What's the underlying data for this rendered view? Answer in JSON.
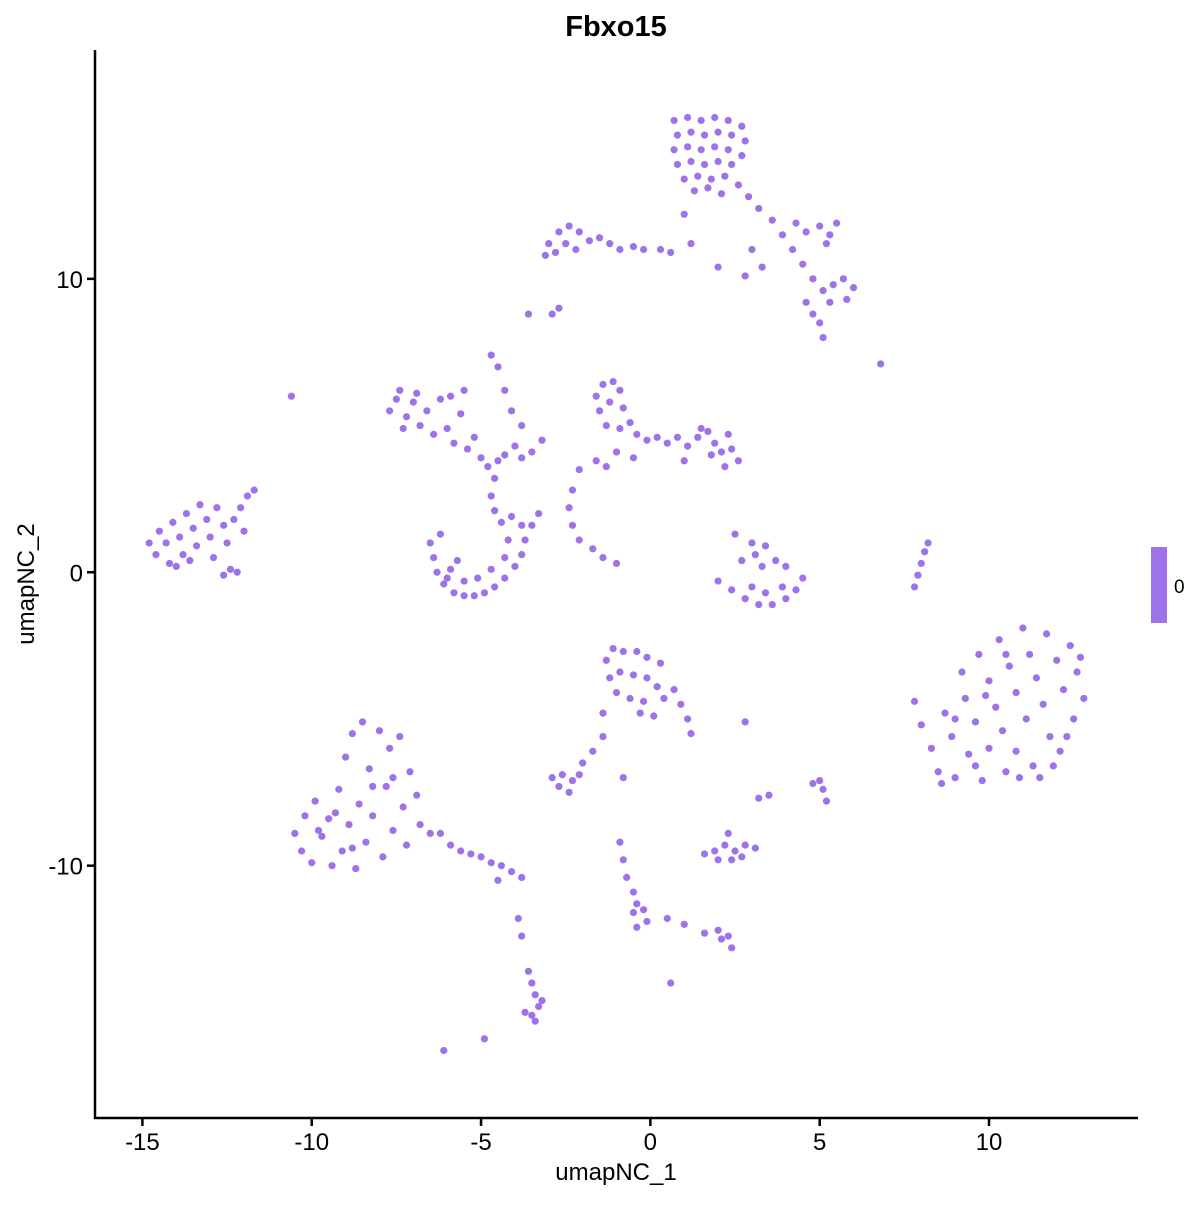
{
  "chart_data": {
    "type": "scatter",
    "title": "Fbxo15",
    "xlabel": "umapNC_1",
    "ylabel": "umapNC_2",
    "xlim": [
      -16.4,
      14.4
    ],
    "ylim": [
      -18.6,
      17.8
    ],
    "xticks": [
      -15,
      -10,
      -5,
      0,
      5,
      10
    ],
    "yticks": [
      -10,
      0,
      10
    ],
    "grid": false,
    "point_color": "#9E72E8",
    "legend": {
      "placement": "right",
      "labels": [
        "0"
      ],
      "color": "#9E72E8"
    },
    "points": [
      [
        0.7,
        15.4
      ],
      [
        1.1,
        15.5
      ],
      [
        1.5,
        15.4
      ],
      [
        1.9,
        15.5
      ],
      [
        2.3,
        15.4
      ],
      [
        2.7,
        15.2
      ],
      [
        0.8,
        14.9
      ],
      [
        1.2,
        15.0
      ],
      [
        1.6,
        14.9
      ],
      [
        2.0,
        15.0
      ],
      [
        2.4,
        14.9
      ],
      [
        2.8,
        14.7
      ],
      [
        0.7,
        14.4
      ],
      [
        1.1,
        14.5
      ],
      [
        1.5,
        14.4
      ],
      [
        1.9,
        14.5
      ],
      [
        2.3,
        14.4
      ],
      [
        2.7,
        14.2
      ],
      [
        0.8,
        13.9
      ],
      [
        1.2,
        14.0
      ],
      [
        1.6,
        13.9
      ],
      [
        2.0,
        14.0
      ],
      [
        2.4,
        13.9
      ],
      [
        1.0,
        13.4
      ],
      [
        1.4,
        13.5
      ],
      [
        1.8,
        13.4
      ],
      [
        2.2,
        13.5
      ],
      [
        1.3,
        13.0
      ],
      [
        1.7,
        13.1
      ],
      [
        2.1,
        12.9
      ],
      [
        2.6,
        13.2
      ],
      [
        2.9,
        12.8
      ],
      [
        3.2,
        12.4
      ],
      [
        3.6,
        12.0
      ],
      [
        3.9,
        11.5
      ],
      [
        4.3,
        11.9
      ],
      [
        4.6,
        11.6
      ],
      [
        5.0,
        11.8
      ],
      [
        5.3,
        11.5
      ],
      [
        5.5,
        11.9
      ],
      [
        5.2,
        11.2
      ],
      [
        4.2,
        11.0
      ],
      [
        4.5,
        10.5
      ],
      [
        4.8,
        10.0
      ],
      [
        5.1,
        9.6
      ],
      [
        5.4,
        9.8
      ],
      [
        5.7,
        10.0
      ],
      [
        6.0,
        9.7
      ],
      [
        5.8,
        9.3
      ],
      [
        5.3,
        9.2
      ],
      [
        4.6,
        9.2
      ],
      [
        4.8,
        8.8
      ],
      [
        5.0,
        8.5
      ],
      [
        3.0,
        11.0
      ],
      [
        3.3,
        10.4
      ],
      [
        1.2,
        11.2
      ],
      [
        1.0,
        12.2
      ],
      [
        2.0,
        10.4
      ],
      [
        2.8,
        10.1
      ],
      [
        5.1,
        8.0
      ],
      [
        6.8,
        7.1
      ],
      [
        -3.0,
        11.2
      ],
      [
        -2.7,
        11.6
      ],
      [
        -2.4,
        11.8
      ],
      [
        -2.1,
        11.6
      ],
      [
        -1.8,
        11.3
      ],
      [
        -2.5,
        11.2
      ],
      [
        -2.8,
        10.9
      ],
      [
        -2.2,
        11.0
      ],
      [
        -1.5,
        11.4
      ],
      [
        -1.2,
        11.2
      ],
      [
        -0.9,
        11.0
      ],
      [
        -0.5,
        11.1
      ],
      [
        -0.2,
        11.0
      ],
      [
        0.3,
        11.0
      ],
      [
        0.6,
        10.9
      ],
      [
        -3.1,
        10.8
      ],
      [
        -2.9,
        8.8
      ],
      [
        -2.7,
        9.0
      ],
      [
        -7.7,
        5.5
      ],
      [
        -7.5,
        5.9
      ],
      [
        -7.4,
        6.2
      ],
      [
        -7.2,
        5.3
      ],
      [
        -7.0,
        5.8
      ],
      [
        -6.8,
        5.0
      ],
      [
        -6.6,
        5.5
      ],
      [
        -6.4,
        4.7
      ],
      [
        -6.2,
        5.9
      ],
      [
        -6.0,
        4.9
      ],
      [
        -5.8,
        4.4
      ],
      [
        -5.6,
        5.4
      ],
      [
        -5.4,
        4.2
      ],
      [
        -5.2,
        4.6
      ],
      [
        -5.0,
        3.9
      ],
      [
        -4.8,
        3.6
      ],
      [
        -4.5,
        3.8
      ],
      [
        -4.3,
        4.0
      ],
      [
        -4.0,
        4.3
      ],
      [
        -3.8,
        3.9
      ],
      [
        -3.5,
        4.1
      ],
      [
        -3.2,
        4.5
      ],
      [
        -7.3,
        4.9
      ],
      [
        -6.9,
        6.1
      ],
      [
        -5.9,
        6.0
      ],
      [
        -5.5,
        6.2
      ],
      [
        -4.7,
        7.4
      ],
      [
        -4.5,
        7.0
      ],
      [
        -4.3,
        6.2
      ],
      [
        -4.1,
        5.5
      ],
      [
        -3.8,
        5.0
      ],
      [
        -10.6,
        6.0
      ],
      [
        -3.6,
        8.8
      ],
      [
        -6.5,
        1.0
      ],
      [
        -6.4,
        0.5
      ],
      [
        -6.3,
        0.0
      ],
      [
        -6.1,
        -0.4
      ],
      [
        -5.8,
        -0.7
      ],
      [
        -5.5,
        -0.8
      ],
      [
        -5.2,
        -0.8
      ],
      [
        -4.9,
        -0.7
      ],
      [
        -4.6,
        -0.5
      ],
      [
        -4.3,
        -0.2
      ],
      [
        -4.0,
        0.2
      ],
      [
        -3.8,
        0.6
      ],
      [
        -3.7,
        1.1
      ],
      [
        -3.8,
        1.6
      ],
      [
        -4.1,
        1.9
      ],
      [
        -4.4,
        1.7
      ],
      [
        -4.6,
        2.1
      ],
      [
        -4.7,
        2.6
      ],
      [
        -4.6,
        3.2
      ],
      [
        -6.2,
        1.3
      ],
      [
        -5.9,
        0.1
      ],
      [
        -5.5,
        -0.3
      ],
      [
        -5.1,
        -0.2
      ],
      [
        -4.7,
        0.1
      ],
      [
        -4.3,
        0.5
      ],
      [
        -4.2,
        1.1
      ],
      [
        -5.7,
        0.4
      ],
      [
        -6.0,
        -0.2
      ],
      [
        -3.5,
        1.6
      ],
      [
        -3.3,
        2.0
      ],
      [
        -14.8,
        1.0
      ],
      [
        -14.6,
        0.6
      ],
      [
        -14.5,
        1.4
      ],
      [
        -14.3,
        1.0
      ],
      [
        -14.2,
        0.3
      ],
      [
        -14.1,
        1.7
      ],
      [
        -13.9,
        1.2
      ],
      [
        -13.8,
        0.6
      ],
      [
        -13.7,
        2.0
      ],
      [
        -13.5,
        1.5
      ],
      [
        -13.4,
        0.9
      ],
      [
        -13.3,
        2.3
      ],
      [
        -13.1,
        1.8
      ],
      [
        -13.0,
        1.2
      ],
      [
        -12.9,
        0.5
      ],
      [
        -12.8,
        2.2
      ],
      [
        -12.6,
        1.6
      ],
      [
        -12.5,
        1.0
      ],
      [
        -12.4,
        0.1
      ],
      [
        -12.2,
        0.0
      ],
      [
        -12.6,
        -0.1
      ],
      [
        -12.3,
        1.8
      ],
      [
        -12.1,
        2.2
      ],
      [
        -11.9,
        2.6
      ],
      [
        -11.7,
        2.8
      ],
      [
        -14.0,
        0.2
      ],
      [
        -13.6,
        0.4
      ],
      [
        -12.0,
        1.4
      ],
      [
        -1.6,
        6.0
      ],
      [
        -1.4,
        6.4
      ],
      [
        -1.1,
        6.5
      ],
      [
        -0.9,
        6.2
      ],
      [
        -1.5,
        5.5
      ],
      [
        -1.2,
        5.8
      ],
      [
        -0.8,
        5.6
      ],
      [
        -1.3,
        5.0
      ],
      [
        -0.9,
        4.9
      ],
      [
        -0.6,
        5.1
      ],
      [
        -0.4,
        4.7
      ],
      [
        -0.1,
        4.5
      ],
      [
        0.2,
        4.6
      ],
      [
        0.5,
        4.4
      ],
      [
        0.8,
        4.6
      ],
      [
        1.1,
        4.3
      ],
      [
        1.4,
        4.6
      ],
      [
        1.7,
        4.8
      ],
      [
        1.9,
        4.4
      ],
      [
        2.1,
        4.1
      ],
      [
        2.4,
        4.2
      ],
      [
        2.6,
        3.8
      ],
      [
        2.2,
        3.6
      ],
      [
        1.8,
        4.0
      ],
      [
        1.0,
        3.8
      ],
      [
        -0.5,
        3.9
      ],
      [
        -1.0,
        4.1
      ],
      [
        -1.3,
        3.6
      ],
      [
        -1.6,
        3.8
      ],
      [
        -2.1,
        3.5
      ],
      [
        -2.3,
        2.8
      ],
      [
        -2.4,
        2.2
      ],
      [
        -2.3,
        1.6
      ],
      [
        -2.1,
        1.1
      ],
      [
        -1.7,
        0.8
      ],
      [
        -1.4,
        0.5
      ],
      [
        -1.0,
        0.3
      ],
      [
        1.5,
        4.9
      ],
      [
        2.3,
        4.7
      ],
      [
        2.0,
        -0.3
      ],
      [
        2.4,
        -0.6
      ],
      [
        2.8,
        -0.9
      ],
      [
        3.2,
        -1.1
      ],
      [
        3.6,
        -1.1
      ],
      [
        4.0,
        -0.9
      ],
      [
        4.3,
        -0.6
      ],
      [
        4.5,
        -0.2
      ],
      [
        3.4,
        -0.7
      ],
      [
        3.0,
        -0.5
      ],
      [
        3.9,
        -0.5
      ],
      [
        3.3,
        0.2
      ],
      [
        3.1,
        0.6
      ],
      [
        3.0,
        1.0
      ],
      [
        3.4,
        0.9
      ],
      [
        3.7,
        0.4
      ],
      [
        4.0,
        0.2
      ],
      [
        2.5,
        1.3
      ],
      [
        2.7,
        0.4
      ],
      [
        7.8,
        -0.5
      ],
      [
        7.9,
        -0.1
      ],
      [
        8.0,
        0.3
      ],
      [
        8.1,
        0.7
      ],
      [
        8.2,
        1.0
      ],
      [
        7.8,
        -4.4
      ],
      [
        8.0,
        -5.2
      ],
      [
        8.3,
        -6.0
      ],
      [
        8.5,
        -6.8
      ],
      [
        8.7,
        -4.8
      ],
      [
        8.9,
        -5.6
      ],
      [
        9.0,
        -7.0
      ],
      [
        9.2,
        -3.4
      ],
      [
        9.3,
        -4.3
      ],
      [
        9.4,
        -6.2
      ],
      [
        9.6,
        -5.1
      ],
      [
        9.7,
        -2.8
      ],
      [
        9.8,
        -7.1
      ],
      [
        10.0,
        -3.7
      ],
      [
        10.0,
        -6.0
      ],
      [
        10.2,
        -4.6
      ],
      [
        10.3,
        -2.3
      ],
      [
        10.4,
        -5.4
      ],
      [
        10.5,
        -6.8
      ],
      [
        10.6,
        -3.2
      ],
      [
        10.8,
        -4.1
      ],
      [
        10.8,
        -6.1
      ],
      [
        11.0,
        -1.9
      ],
      [
        11.1,
        -5.0
      ],
      [
        11.2,
        -2.8
      ],
      [
        11.3,
        -6.6
      ],
      [
        11.4,
        -3.6
      ],
      [
        11.6,
        -4.5
      ],
      [
        11.7,
        -2.1
      ],
      [
        11.8,
        -5.6
      ],
      [
        12.0,
        -3.0
      ],
      [
        12.1,
        -6.1
      ],
      [
        12.2,
        -4.0
      ],
      [
        12.4,
        -2.5
      ],
      [
        12.5,
        -5.0
      ],
      [
        12.6,
        -3.4
      ],
      [
        12.8,
        -4.3
      ],
      [
        12.7,
        -2.9
      ],
      [
        9.0,
        -5.0
      ],
      [
        9.6,
        -6.6
      ],
      [
        10.9,
        -7.0
      ],
      [
        11.9,
        -6.6
      ],
      [
        12.3,
        -5.6
      ],
      [
        8.6,
        -7.2
      ],
      [
        9.9,
        -4.2
      ],
      [
        10.5,
        -2.8
      ],
      [
        11.5,
        -7.0
      ],
      [
        -10.5,
        -8.9
      ],
      [
        -10.3,
        -9.5
      ],
      [
        -10.2,
        -8.3
      ],
      [
        -10.0,
        -9.9
      ],
      [
        -9.9,
        -7.8
      ],
      [
        -9.7,
        -9.0
      ],
      [
        -9.5,
        -8.4
      ],
      [
        -9.4,
        -10.0
      ],
      [
        -9.2,
        -7.4
      ],
      [
        -9.1,
        -9.5
      ],
      [
        -9.0,
        -6.3
      ],
      [
        -8.9,
        -8.6
      ],
      [
        -8.8,
        -5.5
      ],
      [
        -8.7,
        -10.1
      ],
      [
        -8.6,
        -7.9
      ],
      [
        -8.5,
        -5.1
      ],
      [
        -8.4,
        -9.2
      ],
      [
        -8.3,
        -6.7
      ],
      [
        -8.2,
        -8.3
      ],
      [
        -8.0,
        -5.4
      ],
      [
        -7.9,
        -9.7
      ],
      [
        -7.8,
        -7.3
      ],
      [
        -7.7,
        -6.0
      ],
      [
        -7.6,
        -8.8
      ],
      [
        -7.4,
        -5.6
      ],
      [
        -7.3,
        -8.0
      ],
      [
        -7.2,
        -9.3
      ],
      [
        -7.1,
        -6.8
      ],
      [
        -6.9,
        -7.6
      ],
      [
        -6.8,
        -8.6
      ],
      [
        -6.5,
        -8.9
      ],
      [
        -6.2,
        -8.9
      ],
      [
        -5.9,
        -9.3
      ],
      [
        -5.6,
        -9.5
      ],
      [
        -5.3,
        -9.6
      ],
      [
        -5.0,
        -9.7
      ],
      [
        -4.7,
        -9.9
      ],
      [
        -4.4,
        -10.0
      ],
      [
        -4.1,
        -10.2
      ],
      [
        -3.8,
        -10.4
      ],
      [
        -4.5,
        -10.5
      ],
      [
        -9.8,
        -8.8
      ],
      [
        -9.3,
        -8.2
      ],
      [
        -8.2,
        -7.3
      ],
      [
        -7.6,
        -7.0
      ],
      [
        -8.8,
        -9.4
      ],
      [
        -1.3,
        -3.0
      ],
      [
        -1.1,
        -2.6
      ],
      [
        -0.8,
        -2.7
      ],
      [
        -0.4,
        -2.7
      ],
      [
        -0.1,
        -2.9
      ],
      [
        0.3,
        -3.1
      ],
      [
        -1.2,
        -3.6
      ],
      [
        -0.9,
        -3.4
      ],
      [
        -0.5,
        -3.5
      ],
      [
        -0.1,
        -3.6
      ],
      [
        0.2,
        -3.9
      ],
      [
        -1.0,
        -4.1
      ],
      [
        -0.6,
        -4.3
      ],
      [
        -0.2,
        -4.4
      ],
      [
        0.4,
        -4.3
      ],
      [
        0.7,
        -4.0
      ],
      [
        0.9,
        -4.5
      ],
      [
        1.1,
        -5.0
      ],
      [
        1.2,
        -5.5
      ],
      [
        -0.3,
        -4.8
      ],
      [
        -1.4,
        -4.8
      ],
      [
        0.1,
        -4.9
      ],
      [
        -2.9,
        -7.0
      ],
      [
        -2.6,
        -6.9
      ],
      [
        -2.3,
        -7.1
      ],
      [
        -2.1,
        -6.9
      ],
      [
        -2.7,
        -7.3
      ],
      [
        -2.4,
        -7.5
      ],
      [
        -2.0,
        -6.5
      ],
      [
        -1.7,
        -6.1
      ],
      [
        -1.4,
        -5.6
      ],
      [
        -0.8,
        -7.0
      ],
      [
        2.8,
        -5.1
      ],
      [
        1.6,
        -9.6
      ],
      [
        1.9,
        -9.5
      ],
      [
        2.2,
        -9.3
      ],
      [
        2.5,
        -9.5
      ],
      [
        2.8,
        -9.3
      ],
      [
        3.1,
        -9.4
      ],
      [
        2.0,
        -9.8
      ],
      [
        2.4,
        -9.8
      ],
      [
        2.7,
        -9.7
      ],
      [
        2.3,
        -8.9
      ],
      [
        3.2,
        -7.7
      ],
      [
        3.5,
        -7.6
      ],
      [
        4.8,
        -7.2
      ],
      [
        5.1,
        -7.4
      ],
      [
        5.2,
        -7.8
      ],
      [
        5.0,
        -7.1
      ],
      [
        -0.9,
        -9.2
      ],
      [
        -0.8,
        -9.8
      ],
      [
        -0.7,
        -10.4
      ],
      [
        -0.5,
        -10.9
      ],
      [
        -0.4,
        -11.3
      ],
      [
        -0.2,
        -11.5
      ],
      [
        -0.1,
        -11.9
      ],
      [
        -0.4,
        -12.1
      ],
      [
        -0.5,
        -11.6
      ],
      [
        0.5,
        -11.8
      ],
      [
        1.0,
        -12.0
      ],
      [
        1.6,
        -12.3
      ],
      [
        2.1,
        -12.5
      ],
      [
        2.4,
        -12.8
      ],
      [
        2.3,
        -12.4
      ],
      [
        2.0,
        -12.2
      ],
      [
        -3.9,
        -11.8
      ],
      [
        -3.8,
        -12.4
      ],
      [
        -3.6,
        -13.6
      ],
      [
        -3.5,
        -14.0
      ],
      [
        -3.4,
        -14.4
      ],
      [
        -3.3,
        -14.8
      ],
      [
        -3.5,
        -15.1
      ],
      [
        -3.2,
        -14.6
      ],
      [
        -3.7,
        -15.0
      ],
      [
        -3.4,
        -15.3
      ],
      [
        -4.9,
        -15.9
      ],
      [
        -6.1,
        -16.3
      ],
      [
        0.6,
        -14.0
      ]
    ]
  }
}
